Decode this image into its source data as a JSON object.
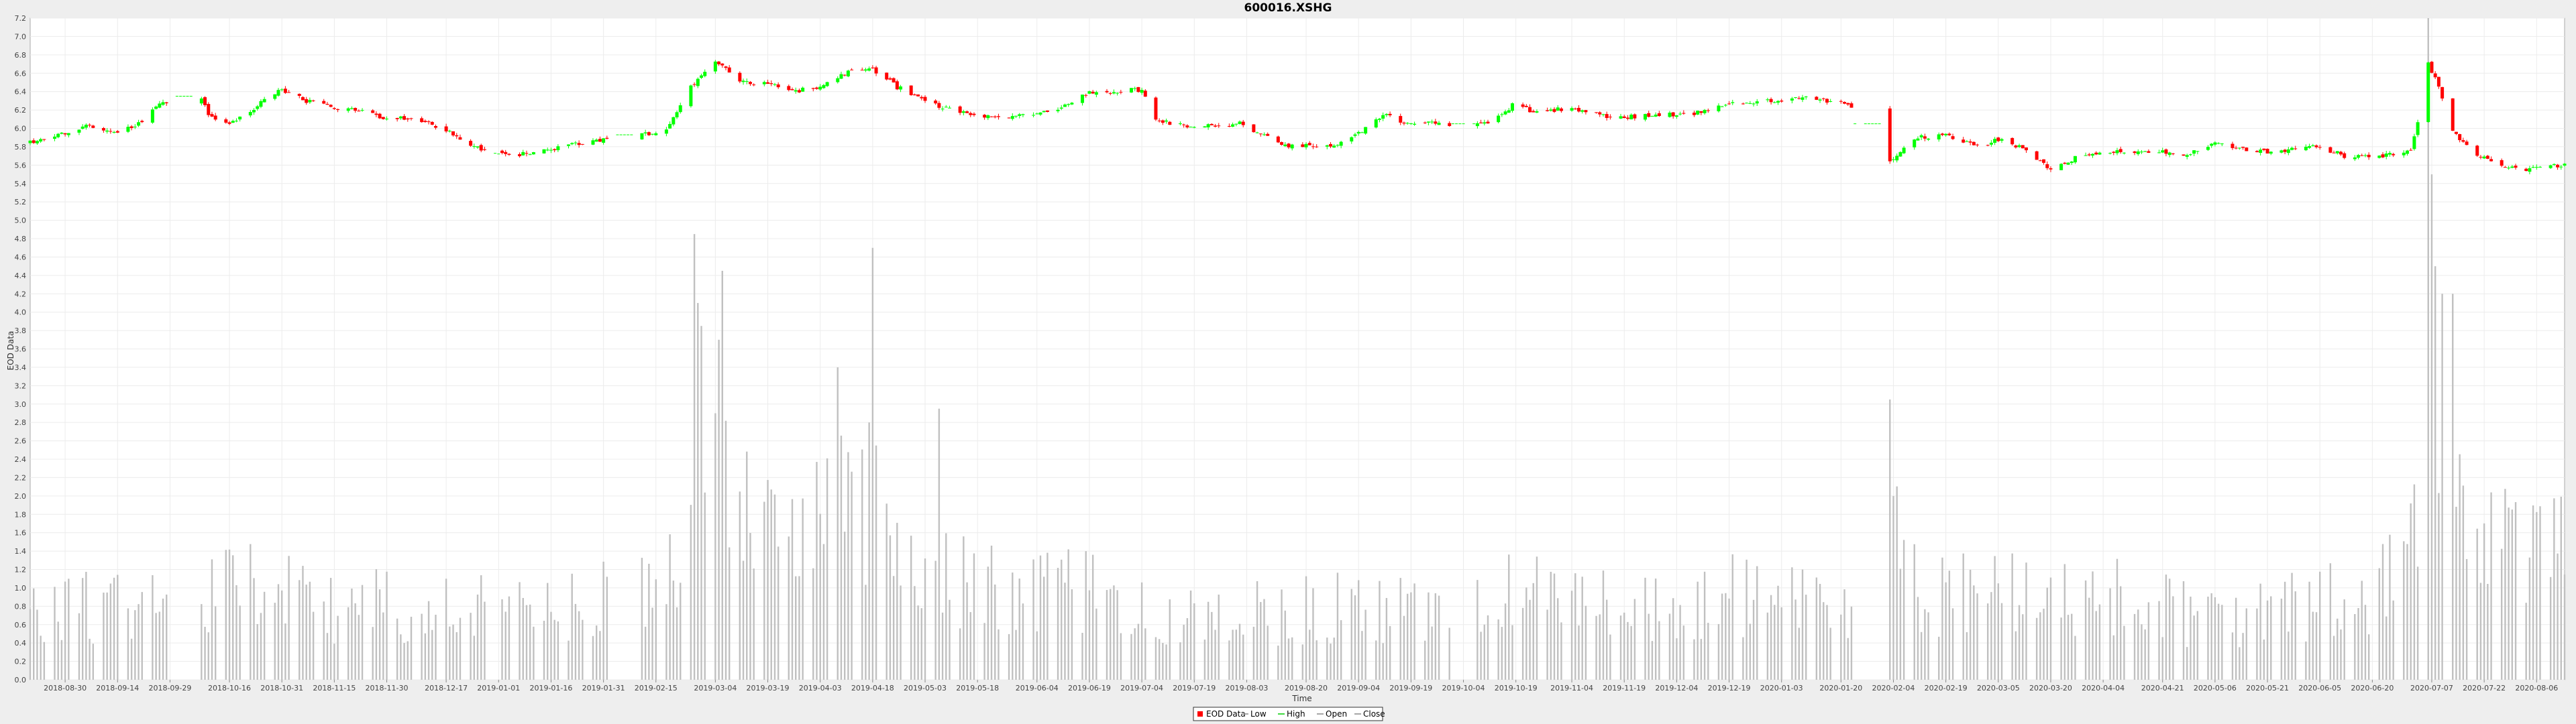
{
  "chart_data": {
    "type": "candlestick",
    "title": "600016.XSHG",
    "xlabel": "Time",
    "ylabel": "EOD Data",
    "ylim": [
      0.0,
      7.2
    ],
    "y_ticks": [
      "0.0",
      "0.2",
      "0.4",
      "0.6",
      "0.8",
      "1.0",
      "1.2",
      "1.4",
      "1.6",
      "1.8",
      "2.0",
      "2.2",
      "2.4",
      "2.6",
      "2.8",
      "3.0",
      "3.2",
      "3.4",
      "3.6",
      "3.8",
      "4.0",
      "4.2",
      "4.4",
      "4.6",
      "4.8",
      "5.0",
      "5.2",
      "5.4",
      "5.6",
      "5.8",
      "6.0",
      "6.2",
      "6.4",
      "6.6",
      "6.8",
      "7.0",
      "7.2"
    ],
    "x_start": "2018-08-20",
    "x_end": "2020-08-14",
    "x_ticks": [
      "2018-08-30",
      "2018-09-14",
      "2018-09-29",
      "2018-10-16",
      "2018-10-31",
      "2018-11-15",
      "2018-11-30",
      "2018-12-17",
      "2019-01-01",
      "2019-01-16",
      "2019-01-31",
      "2019-02-15",
      "2019-03-04",
      "2019-03-19",
      "2019-04-03",
      "2019-04-18",
      "2019-05-03",
      "2019-05-18",
      "2019-06-04",
      "2019-06-19",
      "2019-07-04",
      "2019-07-19",
      "2019-08-03",
      "2019-08-20",
      "2019-09-04",
      "2019-09-19",
      "2019-10-04",
      "2019-10-19",
      "2019-11-04",
      "2019-11-19",
      "2019-12-04",
      "2019-12-19",
      "2020-01-03",
      "2020-01-20",
      "2020-02-04",
      "2020-02-19",
      "2020-03-05",
      "2020-03-20",
      "2020-04-04",
      "2020-04-21",
      "2020-05-06",
      "2020-05-21",
      "2020-06-05",
      "2020-06-20",
      "2020-07-07",
      "2020-07-22",
      "2020-08-06"
    ],
    "close_anchors": [
      [
        "2018-08-20",
        5.85
      ],
      [
        "2018-08-28",
        5.92
      ],
      [
        "2018-09-05",
        6.02
      ],
      [
        "2018-09-13",
        5.95
      ],
      [
        "2018-09-20",
        6.05
      ],
      [
        "2018-09-27",
        6.28
      ],
      [
        "2018-10-01",
        6.35
      ],
      [
        "2018-10-08",
        6.35
      ],
      [
        "2018-10-10",
        6.15
      ],
      [
        "2018-10-16",
        6.05
      ],
      [
        "2018-10-24",
        6.25
      ],
      [
        "2018-10-31",
        6.42
      ],
      [
        "2018-11-07",
        6.3
      ],
      [
        "2018-11-15",
        6.22
      ],
      [
        "2018-11-22",
        6.2
      ],
      [
        "2018-11-30",
        6.1
      ],
      [
        "2018-12-07",
        6.12
      ],
      [
        "2018-12-14",
        6.02
      ],
      [
        "2018-12-21",
        5.9
      ],
      [
        "2018-12-28",
        5.75
      ],
      [
        "2019-01-04",
        5.7
      ],
      [
        "2019-01-16",
        5.78
      ],
      [
        "2019-01-31",
        5.88
      ],
      [
        "2019-02-04",
        5.93
      ],
      [
        "2019-02-11",
        5.93
      ],
      [
        "2019-02-18",
        6.0
      ],
      [
        "2019-02-25",
        6.45
      ],
      [
        "2019-03-04",
        6.75
      ],
      [
        "2019-03-11",
        6.5
      ],
      [
        "2019-03-19",
        6.5
      ],
      [
        "2019-03-26",
        6.4
      ],
      [
        "2019-04-03",
        6.45
      ],
      [
        "2019-04-10",
        6.6
      ],
      [
        "2019-04-18",
        6.65
      ],
      [
        "2019-04-25",
        6.45
      ],
      [
        "2019-05-03",
        6.3
      ],
      [
        "2019-05-10",
        6.2
      ],
      [
        "2019-05-18",
        6.13
      ],
      [
        "2019-05-31",
        6.13
      ],
      [
        "2019-06-10",
        6.22
      ],
      [
        "2019-06-19",
        6.38
      ],
      [
        "2019-07-01",
        6.42
      ],
      [
        "2019-07-04",
        6.42
      ],
      [
        "2019-07-08",
        6.08
      ],
      [
        "2019-07-19",
        6.02
      ],
      [
        "2019-08-01",
        6.05
      ],
      [
        "2019-08-08",
        5.92
      ],
      [
        "2019-08-15",
        5.8
      ],
      [
        "2019-08-28",
        5.82
      ],
      [
        "2019-09-04",
        5.95
      ],
      [
        "2019-09-11",
        6.15
      ],
      [
        "2019-09-19",
        6.05
      ],
      [
        "2019-10-02",
        6.05
      ],
      [
        "2019-10-11",
        6.05
      ],
      [
        "2019-10-18",
        6.25
      ],
      [
        "2019-10-25",
        6.18
      ],
      [
        "2019-11-04",
        6.22
      ],
      [
        "2019-11-15",
        6.12
      ],
      [
        "2019-12-04",
        6.15
      ],
      [
        "2019-12-13",
        6.18
      ],
      [
        "2019-12-19",
        6.28
      ],
      [
        "2019-12-30",
        6.3
      ],
      [
        "2020-01-08",
        6.33
      ],
      [
        "2020-01-16",
        6.3
      ],
      [
        "2020-01-23",
        6.25
      ],
      [
        "2020-01-24",
        6.05
      ],
      [
        "2020-02-02",
        6.05
      ],
      [
        "2020-02-03",
        5.65
      ],
      [
        "2020-02-10",
        5.9
      ],
      [
        "2020-02-19",
        5.92
      ],
      [
        "2020-02-28",
        5.8
      ],
      [
        "2020-03-06",
        5.9
      ],
      [
        "2020-03-13",
        5.75
      ],
      [
        "2020-03-20",
        5.55
      ],
      [
        "2020-03-27",
        5.68
      ],
      [
        "2020-04-04",
        5.75
      ],
      [
        "2020-04-21",
        5.75
      ],
      [
        "2020-04-27",
        5.7
      ],
      [
        "2020-05-06",
        5.85
      ],
      [
        "2020-05-14",
        5.78
      ],
      [
        "2020-05-21",
        5.75
      ],
      [
        "2020-06-05",
        5.8
      ],
      [
        "2020-06-12",
        5.7
      ],
      [
        "2020-06-20",
        5.68
      ],
      [
        "2020-07-01",
        5.75
      ],
      [
        "2020-07-03",
        6.05
      ],
      [
        "2020-07-06",
        6.7
      ],
      [
        "2020-07-09",
        6.45
      ],
      [
        "2020-07-10",
        6.35
      ],
      [
        "2020-07-13",
        5.95
      ],
      [
        "2020-07-20",
        5.72
      ],
      [
        "2020-07-31",
        5.55
      ],
      [
        "2020-08-14",
        5.6
      ]
    ],
    "volume_anchors": [
      [
        "2018-08-20",
        0.8
      ],
      [
        "2018-10-01",
        0.95
      ],
      [
        "2018-10-28",
        1.1
      ],
      [
        "2018-11-15",
        0.85
      ],
      [
        "2018-12-17",
        0.9
      ],
      [
        "2019-01-15",
        0.9
      ],
      [
        "2019-02-13",
        1.0
      ],
      [
        "2019-02-22",
        1.6
      ],
      [
        "2019-02-28",
        3.6
      ],
      [
        "2019-03-08",
        2.3
      ],
      [
        "2019-03-20",
        1.5
      ],
      [
        "2019-04-03",
        1.8
      ],
      [
        "2019-04-16",
        2.2
      ],
      [
        "2019-04-30",
        1.3
      ],
      [
        "2019-05-18",
        1.1
      ],
      [
        "2019-06-19",
        1.0
      ],
      [
        "2019-07-19",
        0.7
      ],
      [
        "2019-08-20",
        0.85
      ],
      [
        "2019-09-19",
        0.8
      ],
      [
        "2019-10-15",
        1.1
      ],
      [
        "2019-11-19",
        0.8
      ],
      [
        "2019-12-19",
        1.0
      ],
      [
        "2020-01-20",
        0.8
      ],
      [
        "2020-02-03",
        1.9
      ],
      [
        "2020-02-12",
        0.9
      ],
      [
        "2020-03-05",
        1.2
      ],
      [
        "2020-04-04",
        1.0
      ],
      [
        "2020-05-06",
        0.7
      ],
      [
        "2020-06-20",
        1.0
      ],
      [
        "2020-07-01",
        1.4
      ],
      [
        "2020-07-06",
        4.6
      ],
      [
        "2020-07-14",
        2.4
      ],
      [
        "2020-07-22",
        1.5
      ],
      [
        "2020-08-14",
        1.6
      ]
    ],
    "volume_spikes": [
      [
        "2019-02-26",
        4.85
      ],
      [
        "2019-02-27",
        4.1
      ],
      [
        "2019-02-28",
        3.85
      ],
      [
        "2019-03-04",
        2.9
      ],
      [
        "2019-03-05",
        3.7
      ],
      [
        "2019-03-06",
        4.45
      ],
      [
        "2019-04-08",
        3.4
      ],
      [
        "2019-04-17",
        2.8
      ],
      [
        "2019-04-18",
        4.7
      ],
      [
        "2019-05-07",
        2.95
      ],
      [
        "2020-02-03",
        3.05
      ],
      [
        "2020-02-04",
        2.0
      ],
      [
        "2020-07-06",
        7.2
      ],
      [
        "2020-07-07",
        5.5
      ],
      [
        "2020-07-08",
        4.5
      ],
      [
        "2020-07-10",
        4.2
      ],
      [
        "2020-07-13",
        4.2
      ]
    ],
    "gaps": [
      [
        "2018-10-01",
        "2018-10-07"
      ],
      [
        "2018-12-29",
        "2019-01-01"
      ],
      [
        "2019-02-04",
        "2019-02-10"
      ],
      [
        "2019-10-01",
        "2019-10-07"
      ],
      [
        "2020-01-24",
        "2020-02-02"
      ]
    ],
    "legend": [
      "EOD Data",
      "Low",
      "High",
      "Open",
      "Close"
    ],
    "legend_position": "bottom-center",
    "colors": {
      "up": "#00ff00",
      "down": "#ff0000",
      "volume": "#c0c0c0",
      "grid": "#ececec",
      "frame": "#aaaaaa"
    },
    "grid": true
  }
}
